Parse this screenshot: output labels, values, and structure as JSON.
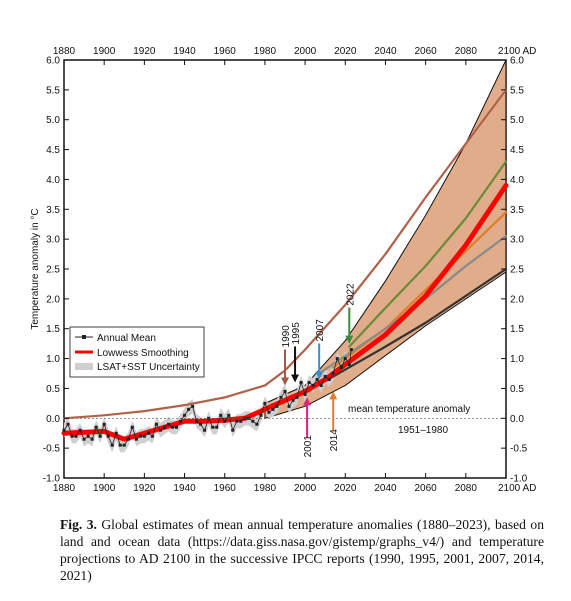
{
  "chart_data": {
    "type": "line",
    "ylabel": "Temperature anomaly in °C",
    "xlim": [
      1880,
      2100
    ],
    "ylim": [
      -1.0,
      6.0
    ],
    "x_ticks": [
      "1880",
      "1900",
      "1920",
      "1940",
      "1960",
      "1980",
      "2000",
      "2020",
      "2040",
      "2060",
      "2080",
      "2100 AD"
    ],
    "x_ticks_bottom": [
      "1880",
      "1900",
      "1920",
      "1940",
      "1960",
      "1980",
      "2000",
      "2020",
      "2040",
      "2060",
      "2080",
      "2100 AD"
    ],
    "y_ticks": [
      "-1.0",
      "-0.5",
      "0.0",
      "0.5",
      "1.0",
      "1.5",
      "2.0",
      "2.5",
      "3.0",
      "3.5",
      "4.0",
      "4.5",
      "5.0",
      "5.5",
      "6.0"
    ],
    "legend": {
      "position": "middle-left",
      "entries": [
        "Annual Mean",
        "Lowwess Smoothing",
        "LSAT+SST Uncertainty"
      ]
    },
    "annotation_baseline": {
      "line1": "mean temperature anomaly",
      "line2": "1951–1980"
    },
    "uncertainty_band": {
      "upper": [
        [
          1980,
          0.25
        ],
        [
          2000,
          0.55
        ],
        [
          2020,
          1.3
        ],
        [
          2040,
          2.3
        ],
        [
          2060,
          3.4
        ],
        [
          2080,
          4.6
        ],
        [
          2100,
          6.0
        ]
      ],
      "lower": [
        [
          1980,
          0.0
        ],
        [
          2000,
          0.2
        ],
        [
          2020,
          0.55
        ],
        [
          2040,
          1.05
        ],
        [
          2060,
          1.55
        ],
        [
          2080,
          2.0
        ],
        [
          2100,
          2.45
        ]
      ]
    },
    "series": [
      {
        "values": [
          [
            1880,
            0.0
          ],
          [
            1900,
            0.05
          ],
          [
            1920,
            0.12
          ],
          [
            1940,
            0.22
          ],
          [
            1960,
            0.35
          ],
          [
            1980,
            0.55
          ],
          [
            1990,
            0.8
          ],
          [
            2000,
            1.15
          ],
          [
            2020,
            1.9
          ],
          [
            2040,
            2.75
          ],
          [
            2060,
            3.7
          ],
          [
            2080,
            4.6
          ],
          [
            2100,
            5.5
          ]
        ],
        "color": "#b0614a"
      },
      {
        "values": [
          [
            2022,
            1.2
          ],
          [
            2040,
            1.85
          ],
          [
            2060,
            2.55
          ],
          [
            2080,
            3.35
          ],
          [
            2100,
            4.3
          ]
        ],
        "color": "#6a8a3c"
      },
      {
        "values": [
          [
            2014,
            0.85
          ],
          [
            2040,
            1.5
          ],
          [
            2060,
            2.15
          ],
          [
            2080,
            2.8
          ],
          [
            2100,
            3.45
          ]
        ],
        "color": "#e07f2a"
      },
      {
        "values": [
          [
            2007,
            0.75
          ],
          [
            2040,
            1.5
          ],
          [
            2060,
            2.0
          ],
          [
            2080,
            2.55
          ],
          [
            2100,
            3.05
          ]
        ],
        "color": "#8a8a8a"
      },
      {
        "values": [
          [
            2001,
            0.45
          ],
          [
            2040,
            1.2
          ],
          [
            2060,
            1.6
          ],
          [
            2080,
            2.05
          ],
          [
            2100,
            2.5
          ]
        ],
        "color": "#333333"
      },
      {
        "name": "Lowwess Smoothing",
        "values": [
          [
            1880,
            -0.25
          ],
          [
            1900,
            -0.22
          ],
          [
            1910,
            -0.35
          ],
          [
            1920,
            -0.25
          ],
          [
            1940,
            -0.05
          ],
          [
            1950,
            -0.05
          ],
          [
            1960,
            -0.03
          ],
          [
            1970,
            0.0
          ],
          [
            1980,
            0.15
          ],
          [
            1990,
            0.3
          ],
          [
            2000,
            0.45
          ],
          [
            2010,
            0.65
          ],
          [
            2020,
            0.9
          ],
          [
            2040,
            1.4
          ],
          [
            2060,
            2.05
          ],
          [
            2080,
            2.9
          ],
          [
            2100,
            3.9
          ]
        ],
        "color": "#ff0000"
      }
    ],
    "annual_mean": [
      [
        1880,
        -0.2
      ],
      [
        1882,
        -0.1
      ],
      [
        1884,
        -0.3
      ],
      [
        1886,
        -0.3
      ],
      [
        1888,
        -0.2
      ],
      [
        1890,
        -0.35
      ],
      [
        1892,
        -0.3
      ],
      [
        1894,
        -0.35
      ],
      [
        1896,
        -0.15
      ],
      [
        1898,
        -0.3
      ],
      [
        1900,
        -0.1
      ],
      [
        1902,
        -0.3
      ],
      [
        1904,
        -0.45
      ],
      [
        1906,
        -0.25
      ],
      [
        1908,
        -0.45
      ],
      [
        1910,
        -0.45
      ],
      [
        1912,
        -0.35
      ],
      [
        1914,
        -0.15
      ],
      [
        1916,
        -0.35
      ],
      [
        1918,
        -0.3
      ],
      [
        1920,
        -0.3
      ],
      [
        1922,
        -0.25
      ],
      [
        1924,
        -0.3
      ],
      [
        1926,
        -0.1
      ],
      [
        1928,
        -0.2
      ],
      [
        1930,
        -0.15
      ],
      [
        1932,
        -0.1
      ],
      [
        1934,
        -0.15
      ],
      [
        1936,
        -0.15
      ],
      [
        1938,
        -0.05
      ],
      [
        1940,
        0.05
      ],
      [
        1942,
        0.15
      ],
      [
        1944,
        0.2
      ],
      [
        1946,
        -0.05
      ],
      [
        1948,
        -0.1
      ],
      [
        1950,
        -0.2
      ],
      [
        1952,
        0.0
      ],
      [
        1954,
        -0.15
      ],
      [
        1956,
        -0.15
      ],
      [
        1958,
        0.05
      ],
      [
        1960,
        -0.05
      ],
      [
        1962,
        0.05
      ],
      [
        1964,
        -0.2
      ],
      [
        1966,
        -0.05
      ],
      [
        1968,
        -0.05
      ],
      [
        1970,
        0.0
      ],
      [
        1972,
        0.0
      ],
      [
        1974,
        -0.05
      ],
      [
        1976,
        -0.1
      ],
      [
        1978,
        0.05
      ],
      [
        1980,
        0.25
      ],
      [
        1982,
        0.1
      ],
      [
        1984,
        0.15
      ],
      [
        1986,
        0.2
      ],
      [
        1988,
        0.35
      ],
      [
        1990,
        0.45
      ],
      [
        1992,
        0.2
      ],
      [
        1994,
        0.3
      ],
      [
        1996,
        0.35
      ],
      [
        1998,
        0.6
      ],
      [
        2000,
        0.4
      ],
      [
        2002,
        0.6
      ],
      [
        2004,
        0.55
      ],
      [
        2006,
        0.65
      ],
      [
        2008,
        0.55
      ],
      [
        2010,
        0.7
      ],
      [
        2012,
        0.65
      ],
      [
        2014,
        0.75
      ],
      [
        2016,
        1.0
      ],
      [
        2018,
        0.85
      ],
      [
        2020,
        1.0
      ],
      [
        2022,
        0.9
      ],
      [
        2023,
        1.15
      ]
    ],
    "ipcc_markers": [
      {
        "label": "1990",
        "year": 1990,
        "value": 0.55,
        "color": "#a05a45"
      },
      {
        "label": "1995",
        "year": 1995,
        "value": 0.6,
        "color": "#111111"
      },
      {
        "label": "2001",
        "year": 2001,
        "value": 0.35,
        "color": "#e0207f"
      },
      {
        "label": "2007",
        "year": 2007,
        "value": 0.65,
        "color": "#3a8fcf"
      },
      {
        "label": "2014",
        "year": 2014,
        "value": 0.45,
        "color": "#e07f2a"
      },
      {
        "label": "2022",
        "year": 2022,
        "value": 1.25,
        "color": "#3a8a3a"
      }
    ],
    "grid": false
  },
  "caption": {
    "fig": "Fig. 3.",
    "text": "Global estimates of mean annual temperature anomalies (1880–2023), based on land and ocean data (https://data.giss.nasa.gov/gistemp/graphs_v4/) and temperature projections to AD 2100 in the successive IPCC reports (1990, 1995, 2001, 2007, 2014, 2021)"
  }
}
